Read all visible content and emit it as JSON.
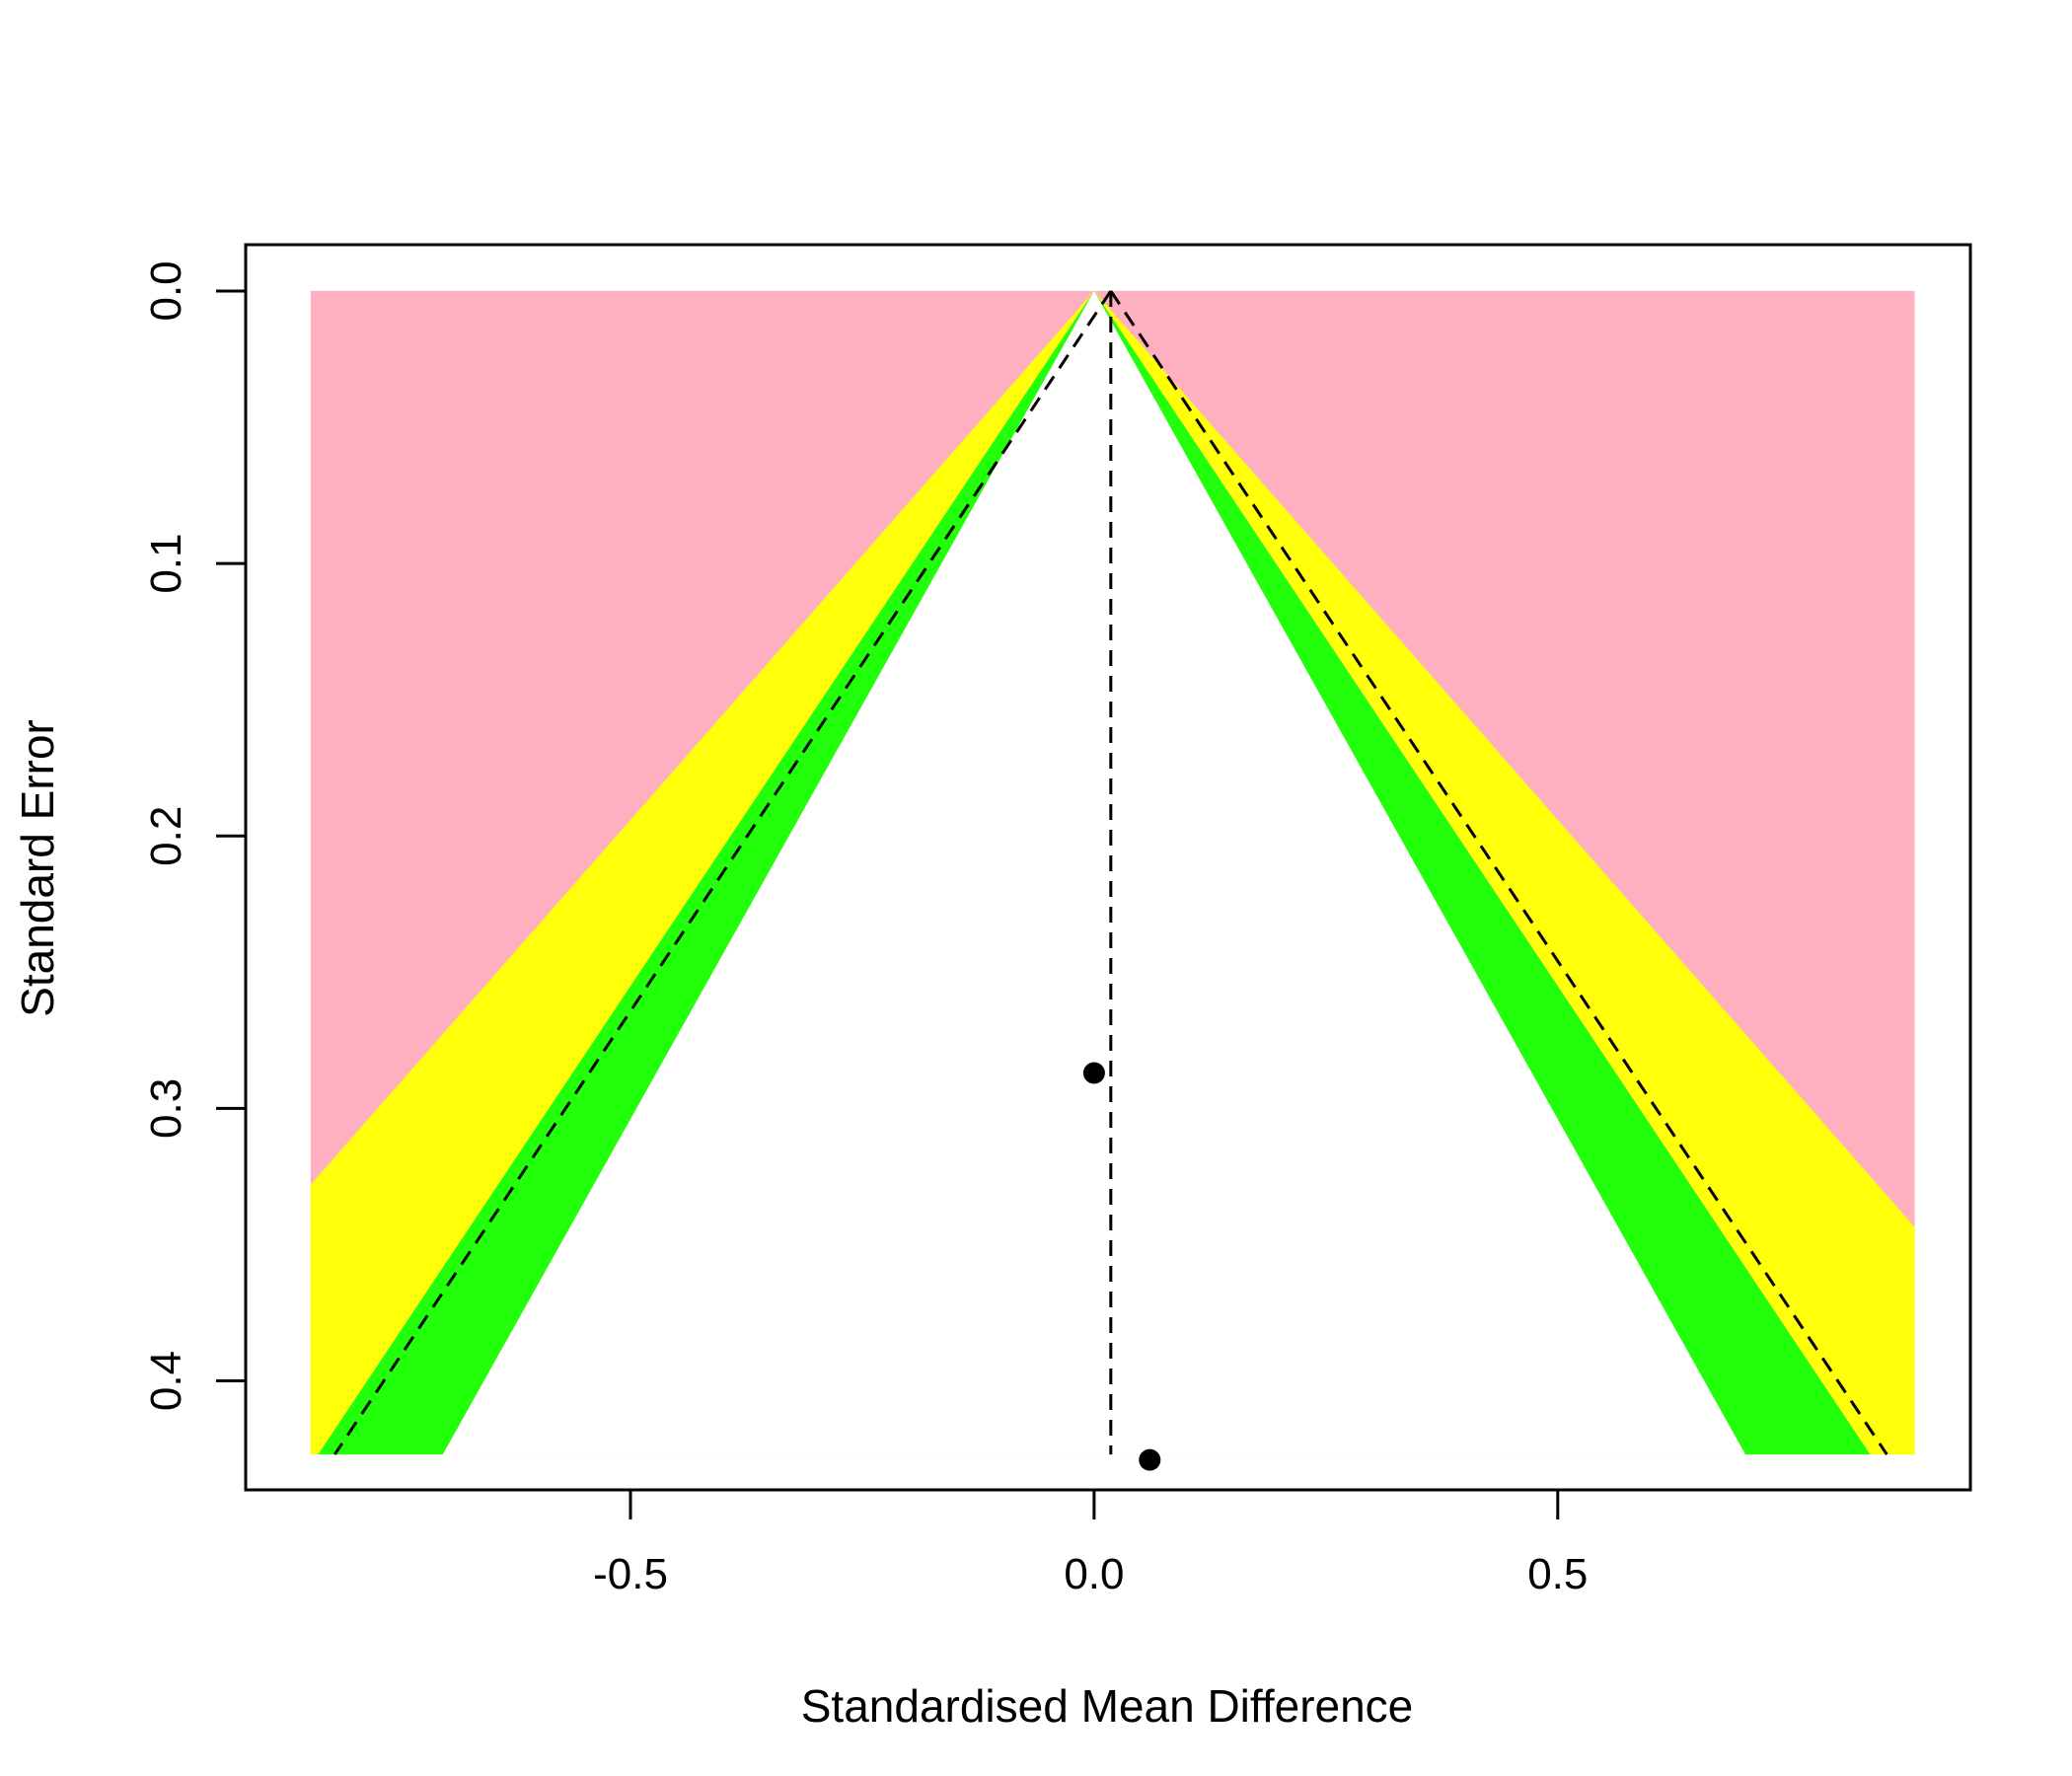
{
  "chart_data": {
    "type": "scatter",
    "subtype": "contour-enhanced funnel plot",
    "title": "",
    "xlabel": "Standardised Mean Difference",
    "ylabel": "Standard Error",
    "xlim": [
      -0.915,
      0.945
    ],
    "ylim": [
      0.44,
      -0.017
    ],
    "y_reversed": true,
    "x_ticks": [
      -0.5,
      0.0,
      0.5
    ],
    "x_tick_labels": [
      "-0.5",
      "0.0",
      "0.5"
    ],
    "y_ticks": [
      0.0,
      0.1,
      0.2,
      0.3,
      0.4
    ],
    "y_tick_labels": [
      "0.0",
      "0.1",
      "0.2",
      "0.3",
      "0.4"
    ],
    "grid": false,
    "legend": "none",
    "region_extent": {
      "x_min": -0.845,
      "x_max": 0.885,
      "se_max": 0.427
    },
    "contour_levels": [
      {
        "z": 1.645,
        "color": "#FFFFFF"
      },
      {
        "z": 1.96,
        "color": "#22FF0A"
      },
      {
        "z": 2.576,
        "color": "#FFFF0A"
      },
      {
        "z": null,
        "color": "#FFB0C0"
      }
    ],
    "funnel": {
      "center": 0.018,
      "z": 1.96
    },
    "points": [
      {
        "x": 0.0,
        "y": 0.287
      },
      {
        "x": 0.06,
        "y": 0.429
      }
    ]
  }
}
